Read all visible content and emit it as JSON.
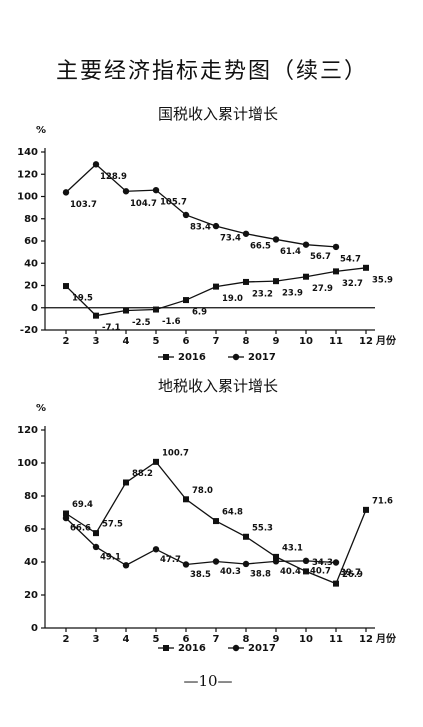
{
  "page_title": "主要经济指标走势图（续三）",
  "page_number": "—10—",
  "chart_data": [
    {
      "type": "line",
      "title": "国税收入累计增长",
      "ylabel": "%",
      "xlabel": "月份",
      "x": [
        2,
        3,
        4,
        5,
        6,
        7,
        8,
        9,
        10,
        11,
        12
      ],
      "xlim": [
        1.3,
        12.3
      ],
      "xticks": [
        2,
        3,
        4,
        5,
        6,
        7,
        8,
        9,
        10,
        11,
        12
      ],
      "ylim": [
        -20,
        140
      ],
      "yticks": [
        -20,
        0,
        20,
        40,
        60,
        80,
        100,
        120,
        140
      ],
      "series": [
        {
          "name": "2016",
          "color": "#111111",
          "marker": "square",
          "values": [
            19.5,
            -7.1,
            -2.5,
            -1.6,
            6.9,
            19.0,
            23.2,
            23.9,
            27.9,
            32.7,
            35.9
          ],
          "value_labels": [
            "19.5",
            "-7.1",
            "-2.5",
            "-1.6",
            "6.9",
            "19.0",
            "23.2",
            "23.9",
            "27.9",
            "32.7",
            "35.9"
          ]
        },
        {
          "name": "2017",
          "color": "#111111",
          "marker": "circle",
          "values": [
            103.7,
            128.9,
            104.7,
            105.7,
            83.4,
            73.4,
            66.5,
            61.4,
            56.7,
            54.7,
            null
          ],
          "value_labels": [
            "103.7",
            "128.9",
            "104.7",
            "105.7",
            "83.4",
            "73.4",
            "66.5",
            "61.4",
            "56.7",
            "54.7",
            null
          ]
        }
      ]
    },
    {
      "type": "line",
      "title": "地税收入累计增长",
      "ylabel": "%",
      "xlabel": "月份",
      "x": [
        2,
        3,
        4,
        5,
        6,
        7,
        8,
        9,
        10,
        11,
        12
      ],
      "xlim": [
        1.3,
        12.3
      ],
      "xticks": [
        2,
        3,
        4,
        5,
        6,
        7,
        8,
        9,
        10,
        11,
        12
      ],
      "ylim": [
        0,
        120
      ],
      "yticks": [
        0,
        20,
        40,
        60,
        80,
        100,
        120
      ],
      "series": [
        {
          "name": "2016",
          "color": "#111111",
          "marker": "square",
          "values": [
            69.4,
            57.5,
            88.2,
            100.7,
            78.0,
            64.8,
            55.3,
            43.1,
            34.3,
            26.9,
            71.6
          ],
          "value_labels": [
            "69.4",
            "57.5",
            "88.2",
            "100.7",
            "78.0",
            "64.8",
            "55.3",
            "43.1",
            "34.3",
            "26.9",
            "71.6"
          ]
        },
        {
          "name": "2017",
          "color": "#111111",
          "marker": "circle",
          "values": [
            66.6,
            49.1,
            38,
            47.7,
            38.5,
            40.3,
            38.8,
            40.4,
            40.7,
            39.7,
            null
          ],
          "value_labels": [
            "66.6",
            "49.1",
            null,
            "47.7",
            "38.5",
            "40.3",
            "38.8",
            "40.4",
            "40.7",
            "39.7",
            null
          ]
        }
      ]
    }
  ]
}
